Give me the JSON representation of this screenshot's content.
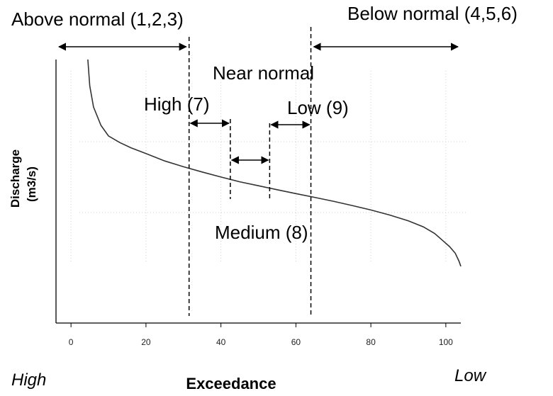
{
  "chart_data": {
    "type": "line",
    "title": "",
    "xlabel": "Exceedance",
    "ylabel": "Discharge (m3/s)",
    "ylabel_lines": [
      "Discharge",
      "(m3/s)"
    ],
    "xlim": [
      -4,
      104
    ],
    "ylim": [
      0,
      100
    ],
    "x_ticks": [
      0,
      20,
      40,
      60,
      80,
      100
    ],
    "grid": "dotted light gray",
    "y_scale_shown": false,
    "x_end_labels": {
      "left": "High",
      "right": "Low"
    },
    "series": [
      {
        "color": "#333333",
        "points": [
          [
            4.5,
            100
          ],
          [
            5,
            90
          ],
          [
            6,
            82
          ],
          [
            8,
            75
          ],
          [
            10,
            71
          ],
          [
            13,
            68.5
          ],
          [
            16,
            66.5
          ],
          [
            20,
            64.3
          ],
          [
            25,
            61.5
          ],
          [
            30,
            59.3
          ],
          [
            35,
            57.3
          ],
          [
            40,
            55.4
          ],
          [
            45,
            53.6
          ],
          [
            50,
            52.1
          ],
          [
            55,
            50.6
          ],
          [
            60,
            49.1
          ],
          [
            65,
            47.7
          ],
          [
            70,
            46.2
          ],
          [
            75,
            44.6
          ],
          [
            80,
            42.9
          ],
          [
            85,
            41
          ],
          [
            90,
            38.8
          ],
          [
            94,
            36.5
          ],
          [
            97,
            34
          ],
          [
            99,
            31.5
          ],
          [
            101,
            29
          ],
          [
            102.5,
            26.5
          ],
          [
            103.5,
            23.5
          ],
          [
            104,
            21.5
          ]
        ]
      }
    ],
    "thresholds": [
      31.5,
      42.5,
      53,
      64
    ],
    "categories": [
      {
        "label": "Above normal (1,2,3)",
        "from": -4,
        "to": 31.5
      },
      {
        "label": "Near normal",
        "from": 31.5,
        "to": 64
      },
      {
        "label": "Below normal (4,5,6)",
        "from": 64,
        "to": 104
      },
      {
        "label": "High (7)",
        "from": 31.5,
        "to": 42.5
      },
      {
        "label": "Medium (8)",
        "from": 42.5,
        "to": 53
      },
      {
        "label": "Low (9)",
        "from": 53,
        "to": 64
      }
    ]
  }
}
